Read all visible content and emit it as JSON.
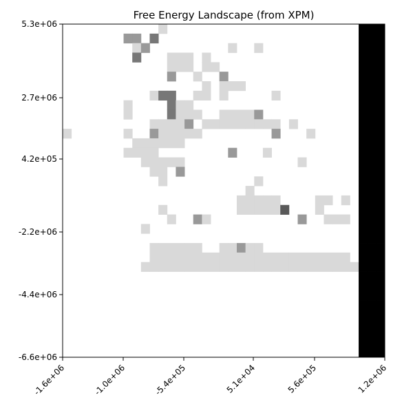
{
  "chart_data": {
    "type": "heatmap",
    "title": "Free Energy Landscape (from XPM)",
    "xlabel": "",
    "ylabel": "",
    "x_ticks": [
      "-1.6e+06",
      "-1.0e+06",
      "-5.4e+05",
      "5.1e+04",
      "5.6e+05",
      "1.2e+06"
    ],
    "y_ticks": [
      "5.3e+06",
      "2.7e+06",
      "4.2e+05",
      "-2.2e+06",
      "-4.4e+06",
      "-6.6e+06"
    ],
    "colormap": "greys (white = high, black = low)",
    "grid": false,
    "legend": "none",
    "levels": {
      "0": "#ffffff",
      "1": "#d9d9d9",
      "2": "#999999",
      "3": "#777777",
      "4": "#595959",
      "5": "#3a3a3a",
      "6": "#000000"
    },
    "grid_values": [
      "0000000000010000000000000000000000666",
      "0000000220300000000000000000000000666",
      "0000000012000000000100100000000000666",
      "0000000030001110100000000000000000666",
      "0000000000001110110000000000000000666",
      "0000000000002001002000000000000000666",
      "0000000000000000101110000000000000666",
      "0000000000133001101000001000000000666",
      "0000000100003110000000000000000000666",
      "0000000100003111001111200000000000666",
      "0000000000111120111111111010000000666",
      "1000000100211111000000002000100000666",
      "0000000011111100000000000000000000666",
      "0000000111100000000200010000000000666",
      "0000000001111100000000000001000000666",
      "0000000000110200000000000000000000666",
      "0000000000010000000000100000000000666",
      "0000000000000000000001000000000000666",
      "0000000000000000000011111000011010666",
      "0000000000010000000011111400010000666",
      "0000000000001002100000000002001110666",
      "0000000001000000000000000000000000666",
      "0000000000000000000000000000000000666",
      "0000000000111111001121100000000000666",
      "0000000000111111111111111111111110666",
      "0000000001111111111111111111111111666",
      "0000000000000000000000000000000000666",
      "0000000000000000000000000000000000666",
      "0000000000000000000000000000000000666",
      "0000000000000000000000000000000000666",
      "0000000000000000000000000000000000666",
      "0000000000000000000000000000000000666",
      "0000000000000000000000000000000000666",
      "0000000000000000000000000000000000666",
      "0000000000000000000000000000000000666"
    ]
  }
}
